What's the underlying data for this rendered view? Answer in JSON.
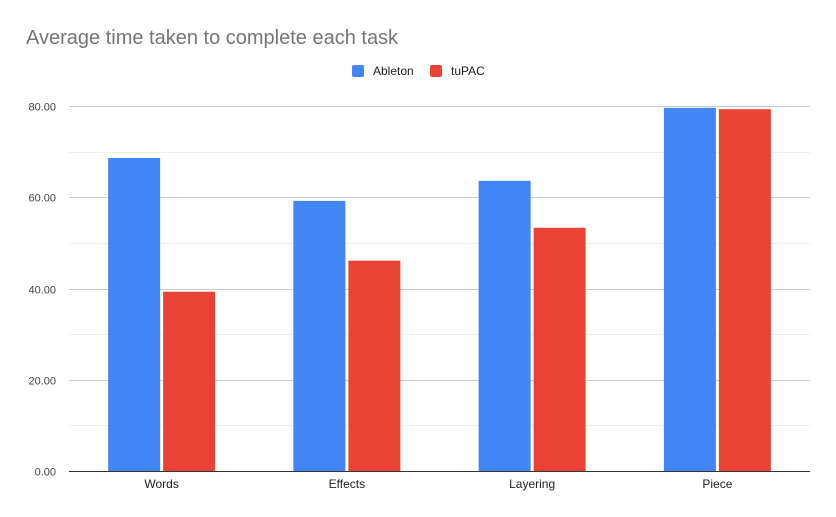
{
  "chart_data": {
    "type": "bar",
    "title": "Average time taken to complete each task",
    "xlabel": "",
    "ylabel": "",
    "categories": [
      "Words",
      "Effects",
      "Layering",
      "Piece"
    ],
    "series": [
      {
        "name": "Ableton",
        "color": "#4285F4",
        "values": [
          68.6,
          59.2,
          63.6,
          79.6
        ]
      },
      {
        "name": "tuPAC",
        "color": "#EA4335",
        "values": [
          39.3,
          46.1,
          53.3,
          79.3
        ]
      }
    ],
    "ylim": [
      0,
      80
    ],
    "y_ticks": [
      0,
      20,
      40,
      60,
      80
    ],
    "y_tick_labels": [
      "0.00",
      "20.00",
      "40.00",
      "60.00",
      "80.00"
    ],
    "grid": true,
    "legend_position": "top"
  }
}
